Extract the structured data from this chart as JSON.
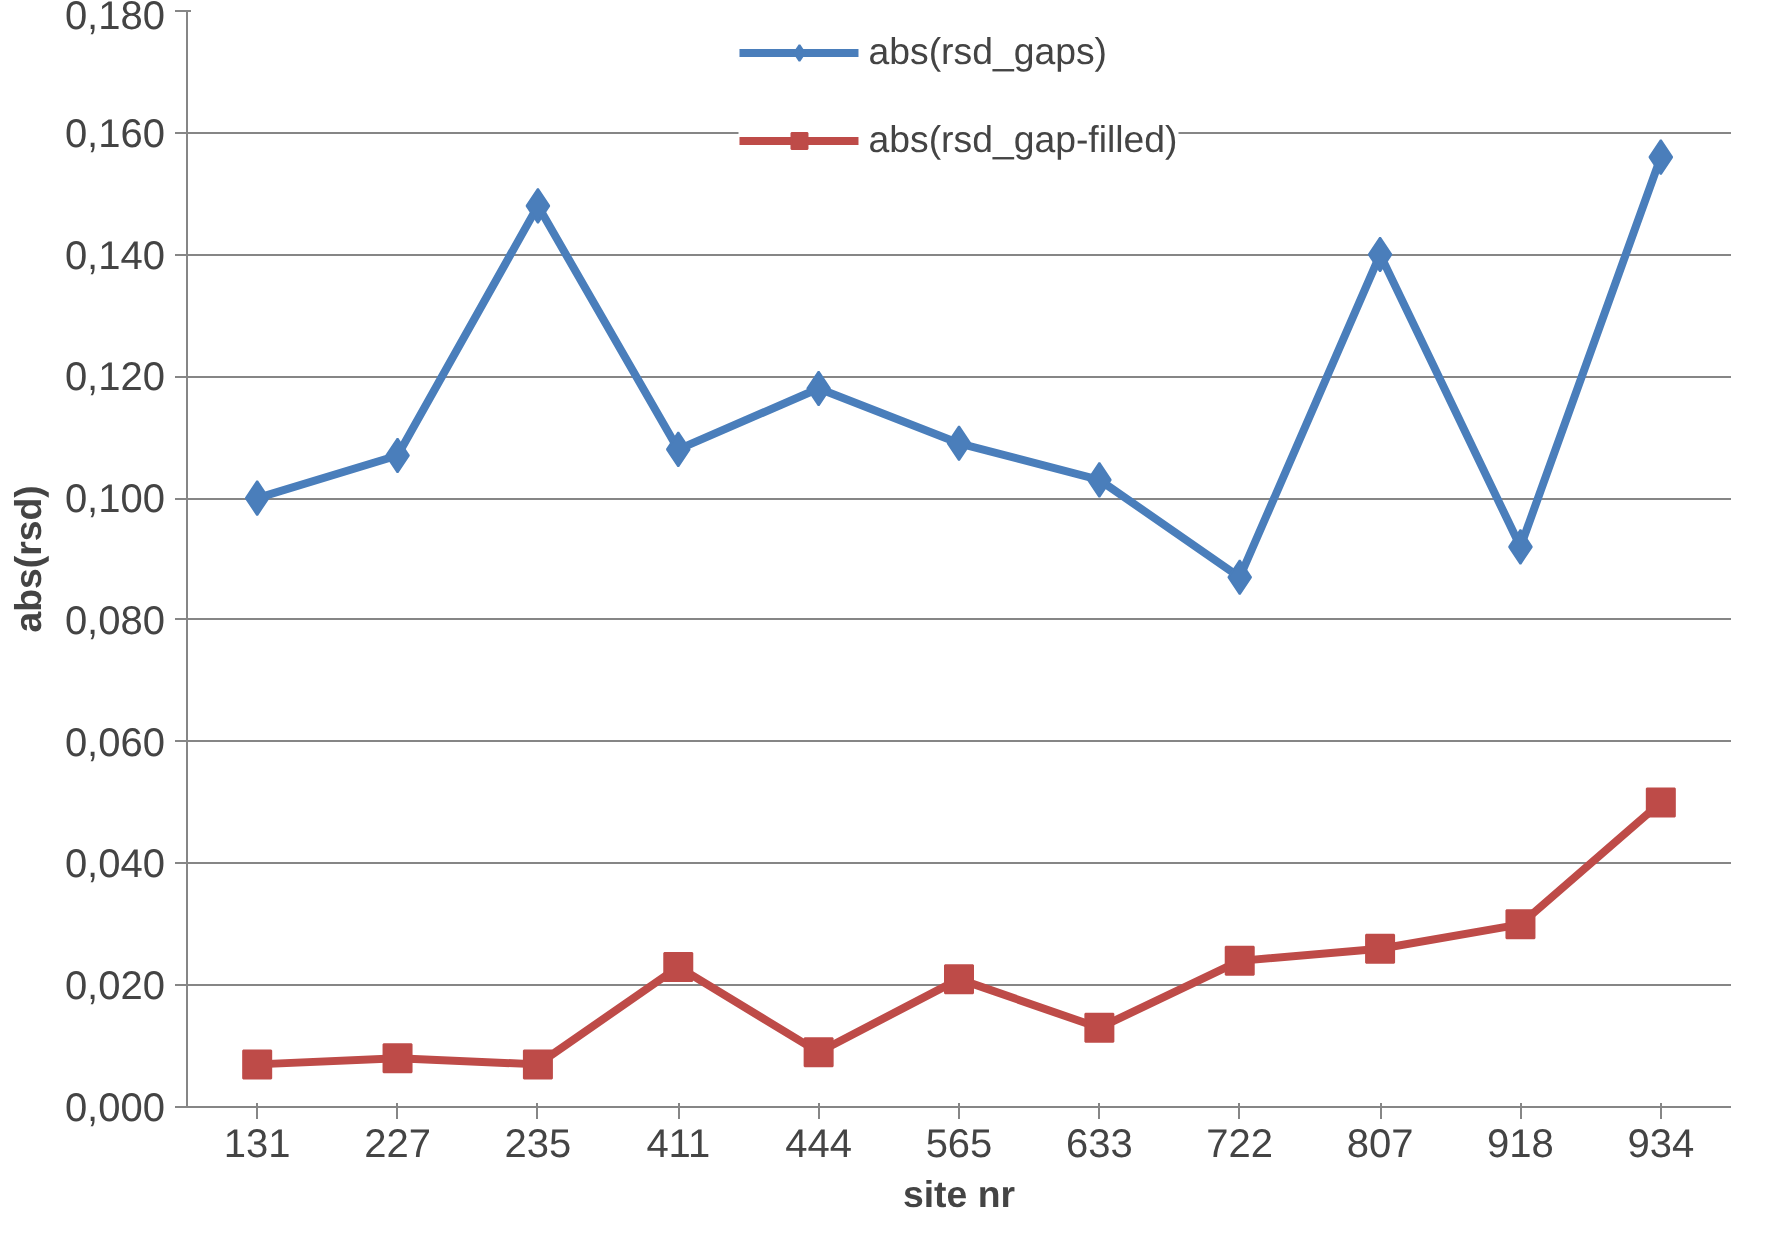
{
  "chart_data": {
    "type": "line",
    "xlabel": "site nr",
    "ylabel": "abs(rsd)",
    "categories": [
      "131",
      "227",
      "235",
      "411",
      "444",
      "565",
      "633",
      "722",
      "807",
      "918",
      "934"
    ],
    "series": [
      {
        "name": "abs(rsd_gaps)",
        "color": "#4a7ebb",
        "marker": "diamond",
        "values": [
          0.1,
          0.107,
          0.148,
          0.108,
          0.118,
          0.109,
          0.103,
          0.087,
          0.14,
          0.092,
          0.156
        ]
      },
      {
        "name": "abs(rsd_gap-filled)",
        "color": "#be4b48",
        "marker": "square",
        "values": [
          0.007,
          0.008,
          0.007,
          0.023,
          0.009,
          0.021,
          0.013,
          0.024,
          0.026,
          0.03,
          0.05
        ]
      }
    ],
    "ylim": [
      0,
      0.18
    ],
    "yticks": [
      {
        "value": 0,
        "label": "0,000"
      },
      {
        "value": 0.02,
        "label": "0,020"
      },
      {
        "value": 0.04,
        "label": "0,040"
      },
      {
        "value": 0.06,
        "label": "0,060"
      },
      {
        "value": 0.08,
        "label": "0,080"
      },
      {
        "value": 0.1,
        "label": "0,100"
      },
      {
        "value": 0.12,
        "label": "0,120"
      },
      {
        "value": 0.14,
        "label": "0,140"
      },
      {
        "value": 0.16,
        "label": "0,160"
      },
      {
        "value": 0.18,
        "label": "0,180"
      }
    ],
    "grid": "y",
    "legend": "top",
    "line_style": "solid"
  }
}
